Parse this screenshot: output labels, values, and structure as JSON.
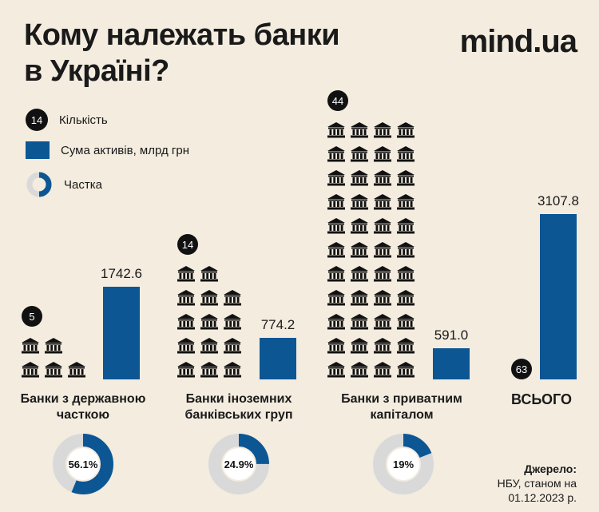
{
  "title_line1": "Кому належать банки",
  "title_line2": "в Україні?",
  "logo": "mind.ua",
  "legend": {
    "count_sample": "14",
    "count_label": "Кількість",
    "assets_label": "Сума активів, млрд грн",
    "share_label": "Частка"
  },
  "chart_data": {
    "type": "bar",
    "categories": [
      "Банки з державною часткою",
      "Банки іноземних банківських груп",
      "Банки з приватним капіталом",
      "ВСЬОГО"
    ],
    "category_lines": [
      [
        "Банки з державною",
        "часткою"
      ],
      [
        "Банки іноземних",
        "банківських груп"
      ],
      [
        "Банки з приватним",
        "капіталом"
      ],
      [
        "ВСЬОГО"
      ]
    ],
    "assets": [
      1742.6,
      774.2,
      591.0,
      3107.8
    ],
    "assets_labels": [
      "1742.6",
      "774.2",
      "591.0",
      "3107.8"
    ],
    "counts": [
      5,
      14,
      44,
      63
    ],
    "count_labels": [
      "5",
      "14",
      "44",
      "63"
    ],
    "shares": [
      56.1,
      24.9,
      19
    ],
    "share_labels": [
      "56.1%",
      "24.9%",
      "19%"
    ],
    "ylabel": "Сума активів, млрд грн"
  },
  "source": {
    "heading": "Джерело:",
    "line1": "НБУ, станом на",
    "line2": "01.12.2023 р."
  },
  "colors": {
    "background": "#f3ecdf",
    "bar": "#0c5694",
    "icon": "#111111",
    "donut_track": "#d9d9d9"
  }
}
